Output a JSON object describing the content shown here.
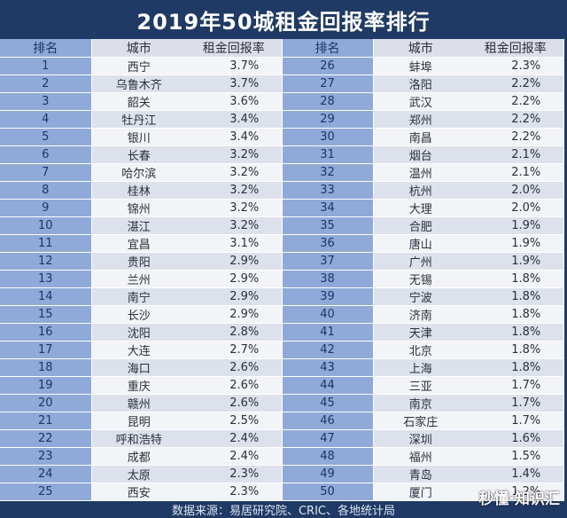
{
  "title": "2019年50城租金回报率排行",
  "headers": {
    "rank": "排名",
    "city": "城市",
    "rate": "租金回报率"
  },
  "rows": [
    {
      "left": {
        "rank": "1",
        "city": "西宁",
        "rate": "3.7%"
      },
      "right": {
        "rank": "26",
        "city": "蚌埠",
        "rate": "2.3%"
      }
    },
    {
      "left": {
        "rank": "2",
        "city": "乌鲁木齐",
        "rate": "3.7%"
      },
      "right": {
        "rank": "27",
        "city": "洛阳",
        "rate": "2.2%"
      }
    },
    {
      "left": {
        "rank": "3",
        "city": "韶关",
        "rate": "3.6%"
      },
      "right": {
        "rank": "28",
        "city": "武汉",
        "rate": "2.2%"
      }
    },
    {
      "left": {
        "rank": "4",
        "city": "牡丹江",
        "rate": "3.4%"
      },
      "right": {
        "rank": "29",
        "city": "郑州",
        "rate": "2.2%"
      }
    },
    {
      "left": {
        "rank": "5",
        "city": "银川",
        "rate": "3.4%"
      },
      "right": {
        "rank": "30",
        "city": "南昌",
        "rate": "2.2%"
      }
    },
    {
      "left": {
        "rank": "6",
        "city": "长春",
        "rate": "3.2%"
      },
      "right": {
        "rank": "31",
        "city": "烟台",
        "rate": "2.1%"
      }
    },
    {
      "left": {
        "rank": "7",
        "city": "哈尔滨",
        "rate": "3.2%"
      },
      "right": {
        "rank": "32",
        "city": "温州",
        "rate": "2.1%"
      }
    },
    {
      "left": {
        "rank": "8",
        "city": "桂林",
        "rate": "3.2%"
      },
      "right": {
        "rank": "33",
        "city": "杭州",
        "rate": "2.0%"
      }
    },
    {
      "left": {
        "rank": "9",
        "city": "锦州",
        "rate": "3.2%"
      },
      "right": {
        "rank": "34",
        "city": "大理",
        "rate": "2.0%"
      }
    },
    {
      "left": {
        "rank": "10",
        "city": "湛江",
        "rate": "3.2%"
      },
      "right": {
        "rank": "35",
        "city": "合肥",
        "rate": "1.9%"
      }
    },
    {
      "left": {
        "rank": "11",
        "city": "宜昌",
        "rate": "3.1%"
      },
      "right": {
        "rank": "36",
        "city": "唐山",
        "rate": "1.9%"
      }
    },
    {
      "left": {
        "rank": "12",
        "city": "贵阳",
        "rate": "2.9%"
      },
      "right": {
        "rank": "37",
        "city": "广州",
        "rate": "1.9%"
      }
    },
    {
      "left": {
        "rank": "13",
        "city": "兰州",
        "rate": "2.9%"
      },
      "right": {
        "rank": "38",
        "city": "无锡",
        "rate": "1.8%"
      }
    },
    {
      "left": {
        "rank": "14",
        "city": "南宁",
        "rate": "2.9%"
      },
      "right": {
        "rank": "39",
        "city": "宁波",
        "rate": "1.8%"
      }
    },
    {
      "left": {
        "rank": "15",
        "city": "长沙",
        "rate": "2.9%"
      },
      "right": {
        "rank": "40",
        "city": "济南",
        "rate": "1.8%"
      }
    },
    {
      "left": {
        "rank": "16",
        "city": "沈阳",
        "rate": "2.8%"
      },
      "right": {
        "rank": "41",
        "city": "天津",
        "rate": "1.8%"
      }
    },
    {
      "left": {
        "rank": "17",
        "city": "大连",
        "rate": "2.7%"
      },
      "right": {
        "rank": "42",
        "city": "北京",
        "rate": "1.8%"
      }
    },
    {
      "left": {
        "rank": "18",
        "city": "海口",
        "rate": "2.6%"
      },
      "right": {
        "rank": "43",
        "city": "上海",
        "rate": "1.8%"
      }
    },
    {
      "left": {
        "rank": "19",
        "city": "重庆",
        "rate": "2.6%"
      },
      "right": {
        "rank": "44",
        "city": "三亚",
        "rate": "1.7%"
      }
    },
    {
      "left": {
        "rank": "20",
        "city": "赣州",
        "rate": "2.6%"
      },
      "right": {
        "rank": "45",
        "city": "南京",
        "rate": "1.7%"
      }
    },
    {
      "left": {
        "rank": "21",
        "city": "昆明",
        "rate": "2.5%"
      },
      "right": {
        "rank": "46",
        "city": "石家庄",
        "rate": "1.7%"
      }
    },
    {
      "left": {
        "rank": "22",
        "city": "呼和浩特",
        "rate": "2.4%"
      },
      "right": {
        "rank": "47",
        "city": "深圳",
        "rate": "1.6%"
      }
    },
    {
      "left": {
        "rank": "23",
        "city": "成都",
        "rate": "2.4%"
      },
      "right": {
        "rank": "48",
        "city": "福州",
        "rate": "1.5%"
      }
    },
    {
      "left": {
        "rank": "24",
        "city": "太原",
        "rate": "2.3%"
      },
      "right": {
        "rank": "49",
        "city": "青岛",
        "rate": "1.4%"
      }
    },
    {
      "left": {
        "rank": "25",
        "city": "西安",
        "rate": "2.3%"
      },
      "right": {
        "rank": "50",
        "city": "厦门",
        "rate": "1.2%"
      }
    }
  ],
  "footer": "数据来源：易居研究院、CRIC、各地统计局",
  "watermark": "秒懂·知识汇",
  "colors": {
    "title_bg": "#1f3a64",
    "rank_col_bg": "#8fa9d9",
    "row_light": "#f3f4f8",
    "row_dark": "#dde1ec"
  }
}
